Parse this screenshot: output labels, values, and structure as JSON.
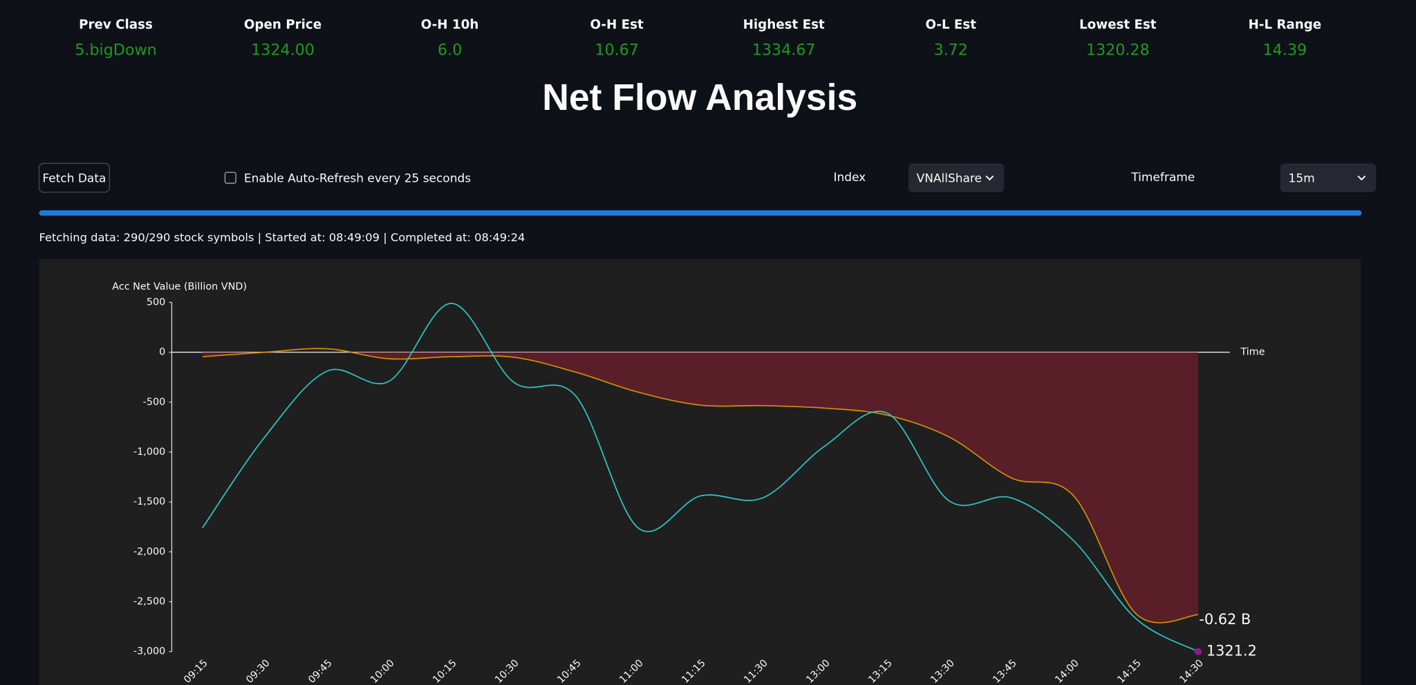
{
  "metrics": [
    {
      "label": "Prev Class",
      "value": "5.bigDown"
    },
    {
      "label": "Open Price",
      "value": "1324.00"
    },
    {
      "label": "O-H 10h",
      "value": "6.0"
    },
    {
      "label": "O-H Est",
      "value": "10.67"
    },
    {
      "label": "Highest Est",
      "value": "1334.67"
    },
    {
      "label": "O-L Est",
      "value": "3.72"
    },
    {
      "label": "Lowest Est",
      "value": "1320.28"
    },
    {
      "label": "H-L Range",
      "value": "14.39"
    }
  ],
  "title": "Net Flow Analysis",
  "controls": {
    "fetch_button": "Fetch Data",
    "auto_refresh": "Enable Auto-Refresh every 25 seconds",
    "index_label": "Index",
    "index_value": "VNAllShare",
    "timeframe_label": "Timeframe",
    "timeframe_value": "15m"
  },
  "status": "Fetching data: 290/290 stock symbols | Started at: 08:49:09 | Completed at: 08:49:24",
  "chart_data": {
    "type": "line",
    "y_label": "Acc Net Value (Billion VND)",
    "x_label": "Time",
    "categories": [
      "09:15",
      "09:30",
      "09:45",
      "10:00",
      "10:15",
      "10:30",
      "10:45",
      "11:00",
      "11:15",
      "11:30",
      "13:00",
      "13:15",
      "13:30",
      "13:45",
      "14:00",
      "14:15",
      "14:30"
    ],
    "series": [
      {
        "color": "#2ec8c8",
        "end_label": "1321.2",
        "values": [
          -1760,
          -850,
          -190,
          -290,
          490,
          -300,
          -440,
          -1760,
          -1440,
          -1460,
          -940,
          -610,
          -1490,
          -1460,
          -1890,
          -2670,
          -3000
        ]
      },
      {
        "color": "#d4900a",
        "end_label": "-0.62 B",
        "fill_color": "#5a1e29",
        "values": [
          -45,
          0,
          35,
          -65,
          -45,
          -50,
          -200,
          -400,
          -530,
          -535,
          -560,
          -630,
          -850,
          -1260,
          -1440,
          -2620,
          -2630
        ]
      }
    ],
    "ylim": [
      -3000,
      500
    ],
    "yticks": [
      500,
      0,
      -500,
      {
        "value": -1000,
        "label": "-1,000"
      },
      {
        "value": -1500,
        "label": "-1,500"
      },
      {
        "value": -2000,
        "label": "-2,000"
      },
      {
        "value": -2500,
        "label": "-2,500"
      },
      {
        "value": -3000,
        "label": "-3,000"
      }
    ]
  }
}
